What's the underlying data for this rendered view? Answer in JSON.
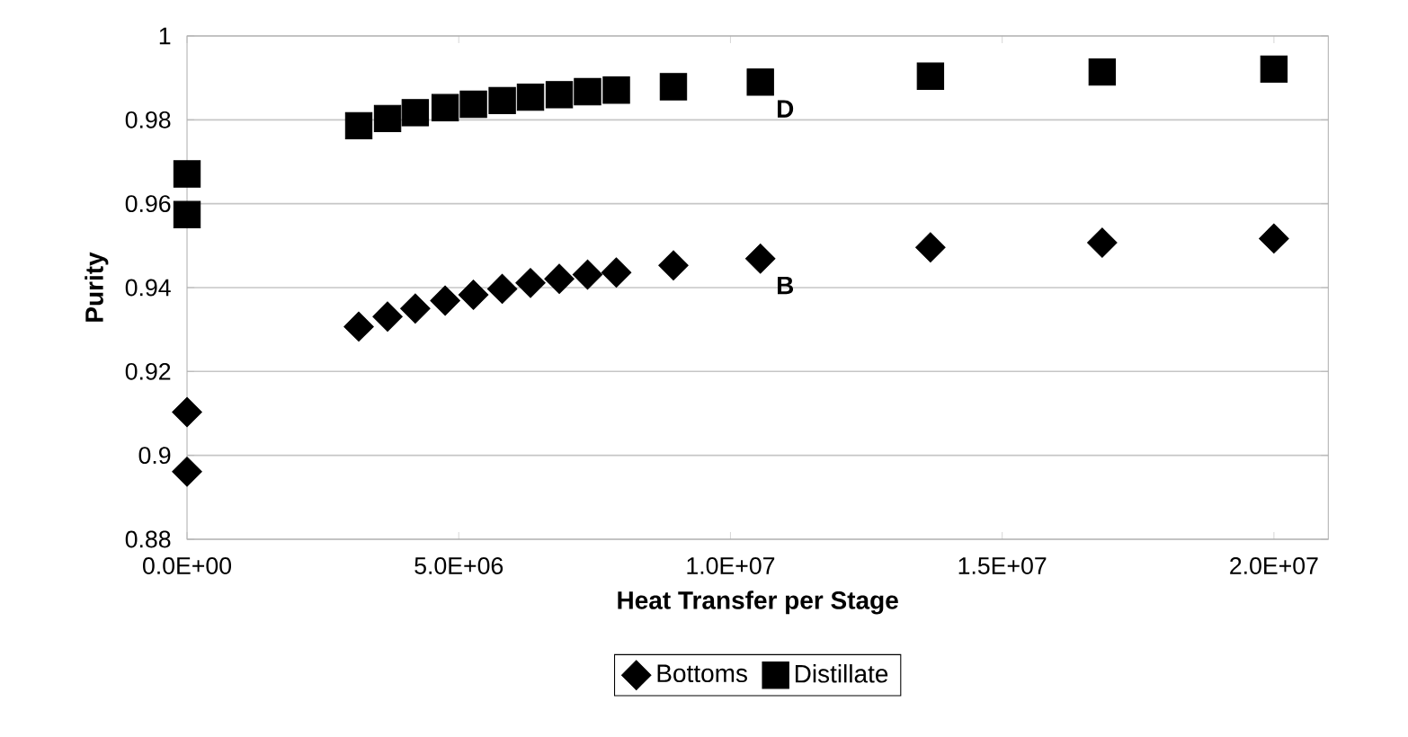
{
  "chart_data": {
    "type": "scatter",
    "xlabel": "Heat Transfer per Stage",
    "ylabel": "Purity",
    "xlim": [
      0,
      21000000
    ],
    "ylim": [
      0.88,
      1
    ],
    "xticks": [
      {
        "value": 0,
        "label": "0.0E+00"
      },
      {
        "value": 5000000,
        "label": "5.0E+06"
      },
      {
        "value": 10000000,
        "label": "1.0E+07"
      },
      {
        "value": 15000000,
        "label": "1.5E+07"
      },
      {
        "value": 20000000,
        "label": "2.0E+07"
      }
    ],
    "yticks": [
      0.88,
      0.9,
      0.92,
      0.94,
      0.96,
      0.98,
      1
    ],
    "grid": "y",
    "legend": "bottom",
    "x": [
      0,
      0,
      3160000,
      3690000,
      4200000,
      4750000,
      5270000,
      5800000,
      6320000,
      6850000,
      7370000,
      7900000,
      8950000,
      10550000,
      13680000,
      16840000,
      20000000
    ],
    "series": [
      {
        "name": "Bottoms",
        "color": "#000000",
        "marker": "diamond",
        "values": [
          0.9103,
          0.8961,
          0.9307,
          0.9331,
          0.935,
          0.9369,
          0.9383,
          0.9397,
          0.9411,
          0.9421,
          0.9431,
          0.9436,
          0.9453,
          0.9469,
          0.9496,
          0.9507,
          0.9517
        ]
      },
      {
        "name": "Distillate",
        "color": "#000000",
        "marker": "square",
        "values": [
          0.9671,
          0.9574,
          0.9786,
          0.9803,
          0.9817,
          0.9829,
          0.9837,
          0.9846,
          0.9854,
          0.986,
          0.9867,
          0.9871,
          0.9879,
          0.989,
          0.9904,
          0.9914,
          0.9921
        ]
      }
    ],
    "annotations": [
      "D",
      "B"
    ]
  }
}
